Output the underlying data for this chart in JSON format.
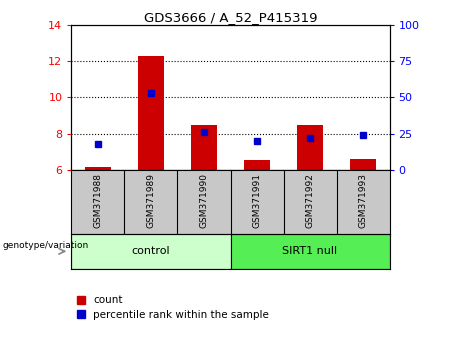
{
  "title": "GDS3666 / A_52_P415319",
  "samples": [
    "GSM371988",
    "GSM371989",
    "GSM371990",
    "GSM371991",
    "GSM371992",
    "GSM371993"
  ],
  "counts": [
    6.15,
    12.3,
    8.5,
    6.55,
    8.5,
    6.6
  ],
  "percentile_ranks_pct": [
    18,
    53,
    26,
    20,
    22,
    24
  ],
  "ymin": 6,
  "ymax": 14,
  "y2min": 0,
  "y2max": 100,
  "yticks_left": [
    6,
    8,
    10,
    12,
    14
  ],
  "yticks_right": [
    0,
    25,
    50,
    75,
    100
  ],
  "groups": [
    {
      "label": "control",
      "start": 0,
      "end": 3,
      "color": "#ccffcc"
    },
    {
      "label": "SIRT1 null",
      "start": 3,
      "end": 6,
      "color": "#55ee55"
    }
  ],
  "bar_color": "#cc0000",
  "marker_color": "#0000cc",
  "bar_width": 0.5,
  "count_base": 6,
  "gray_bg": "#c8c8c8",
  "legend_count_label": "count",
  "legend_pct_label": "percentile rank within the sample",
  "genotype_label": "genotype/variation"
}
